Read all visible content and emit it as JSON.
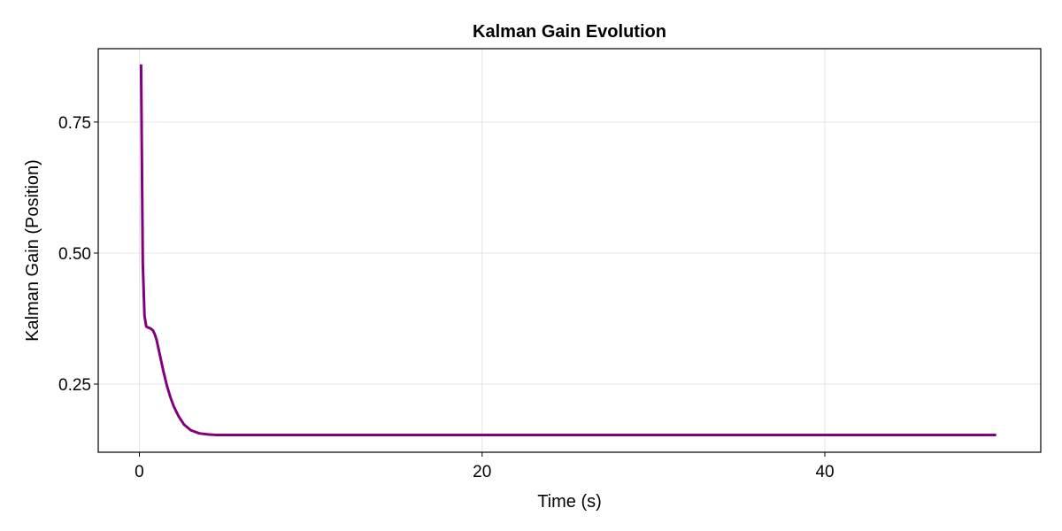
{
  "chart_data": {
    "type": "line",
    "title": "Kalman Gain Evolution",
    "xlabel": "Time (s)",
    "ylabel": "Kalman Gain (Position)",
    "xlim": [
      -2.4,
      52.6
    ],
    "ylim": [
      0.12,
      0.89
    ],
    "xticks": [
      0,
      20,
      40
    ],
    "xtick_labels": [
      "0",
      "20",
      "40"
    ],
    "yticks": [
      0.25,
      0.5,
      0.75
    ],
    "ytick_labels": [
      "0.25",
      "0.50",
      "0.75"
    ],
    "grid": true,
    "series": [
      {
        "color": "#800080",
        "x": [
          0.1,
          0.2,
          0.3,
          0.4,
          0.5,
          0.6,
          0.7,
          0.8,
          0.9,
          1.0,
          1.2,
          1.4,
          1.6,
          1.8,
          2.0,
          2.3,
          2.6,
          3.0,
          3.5,
          4.0,
          4.5,
          5.0,
          6.0,
          8.0,
          10.0,
          15.0,
          20.0,
          25.0,
          30.0,
          35.0,
          40.0,
          45.0,
          50.0
        ],
        "y": [
          0.86,
          0.48,
          0.38,
          0.36,
          0.358,
          0.357,
          0.355,
          0.352,
          0.345,
          0.335,
          0.305,
          0.275,
          0.248,
          0.226,
          0.208,
          0.188,
          0.173,
          0.162,
          0.156,
          0.154,
          0.153,
          0.153,
          0.153,
          0.153,
          0.153,
          0.153,
          0.153,
          0.153,
          0.153,
          0.153,
          0.153,
          0.153,
          0.153
        ]
      }
    ]
  }
}
